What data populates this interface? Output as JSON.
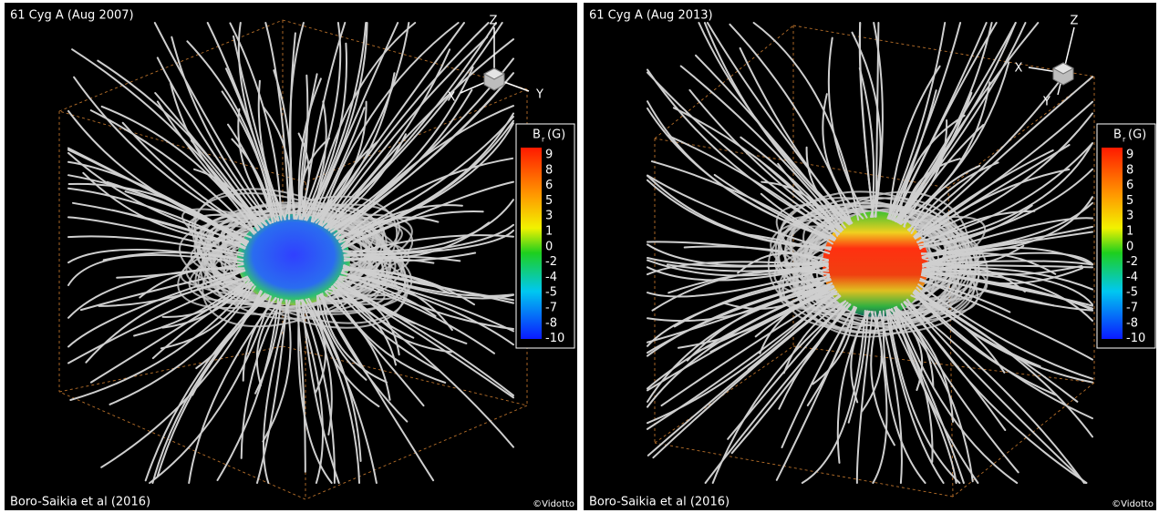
{
  "panels": [
    {
      "title": "61 Cyg A (Aug 2007)",
      "credit": "Boro-Saikia et al (2016)",
      "copyright": "©Vidotto",
      "axes": {
        "x": "X",
        "y": "Y",
        "z": "Z"
      },
      "colorbar": {
        "symbol": "B",
        "subscript": "r",
        "unit": "(G)",
        "ticks": [
          9,
          8,
          6,
          5,
          3,
          1,
          0,
          -2,
          -4,
          -5,
          -7,
          -8,
          -10
        ]
      }
    },
    {
      "title": "61 Cyg A (Aug 2013)",
      "credit": "Boro-Saikia et al (2016)",
      "copyright": "©Vidotto",
      "axes": {
        "x": "X",
        "y": "Y",
        "z": "Z"
      },
      "colorbar": {
        "symbol": "B",
        "subscript": "r",
        "unit": "(G)",
        "ticks": [
          9,
          8,
          6,
          5,
          3,
          1,
          0,
          -2,
          -4,
          -5,
          -7,
          -8,
          -10
        ]
      }
    }
  ]
}
